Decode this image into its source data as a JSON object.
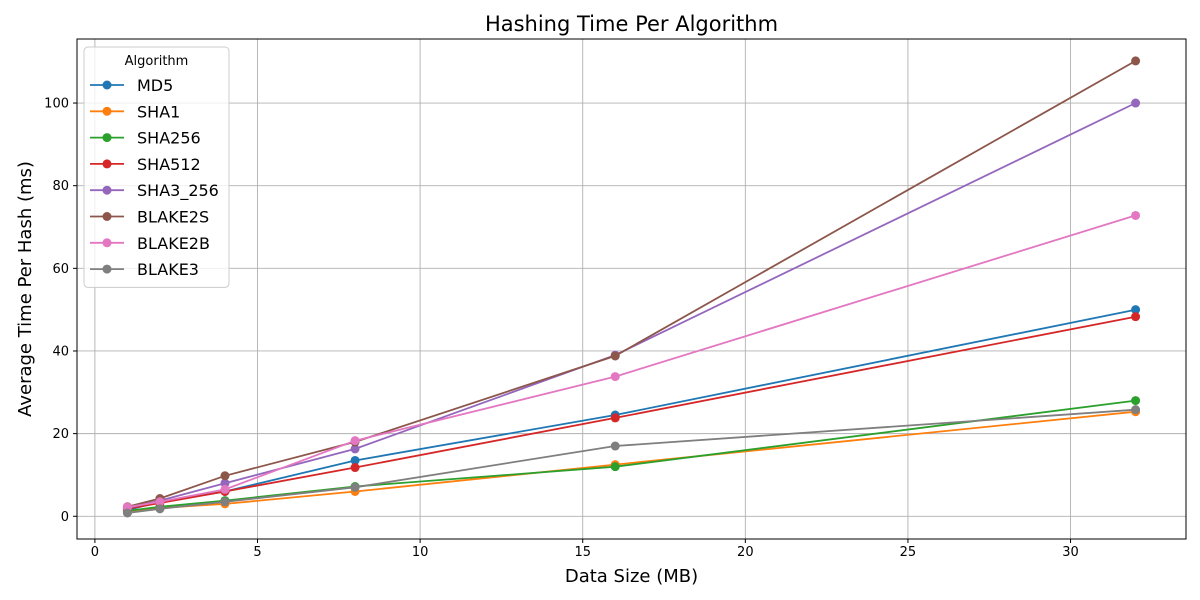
{
  "chart_data": {
    "type": "line",
    "title": "Hashing Time Per Algorithm",
    "xlabel": "Data Size (MB)",
    "ylabel": "Average Time Per Hash (ms)",
    "xlim": [
      -0.55,
      33.55
    ],
    "ylim": [
      -5.5,
      115.5
    ],
    "xticks": [
      0,
      5,
      10,
      15,
      20,
      25,
      30
    ],
    "yticks": [
      0,
      20,
      40,
      60,
      80,
      100
    ],
    "grid": true,
    "legend_title": "Algorithm",
    "legend_position": "upper-left",
    "x": [
      1,
      2,
      4,
      8,
      16,
      32
    ],
    "series": [
      {
        "name": "MD5",
        "color": "#1f77b4",
        "values": [
          1.5,
          3.5,
          6.0,
          13.5,
          24.5,
          50.0
        ]
      },
      {
        "name": "SHA1",
        "color": "#ff7f0e",
        "values": [
          1.0,
          2.0,
          3.0,
          6.0,
          12.5,
          25.3
        ]
      },
      {
        "name": "SHA256",
        "color": "#2ca02c",
        "values": [
          1.3,
          2.3,
          3.8,
          7.2,
          12.0,
          28.0
        ]
      },
      {
        "name": "SHA512",
        "color": "#d62728",
        "values": [
          1.8,
          3.2,
          6.0,
          11.8,
          23.8,
          48.3
        ]
      },
      {
        "name": "SHA3_256",
        "color": "#9467bd",
        "values": [
          2.0,
          3.8,
          8.0,
          16.3,
          39.0,
          100.0
        ]
      },
      {
        "name": "BLAKE2S",
        "color": "#8c564b",
        "values": [
          2.3,
          4.3,
          9.8,
          18.0,
          38.8,
          110.2
        ]
      },
      {
        "name": "BLAKE2B",
        "color": "#e377c2",
        "values": [
          2.2,
          3.5,
          6.5,
          18.3,
          33.8,
          72.8
        ]
      },
      {
        "name": "BLAKE3",
        "color": "#7f7f7f",
        "values": [
          0.8,
          1.8,
          3.5,
          7.0,
          17.0,
          25.8
        ]
      }
    ]
  }
}
